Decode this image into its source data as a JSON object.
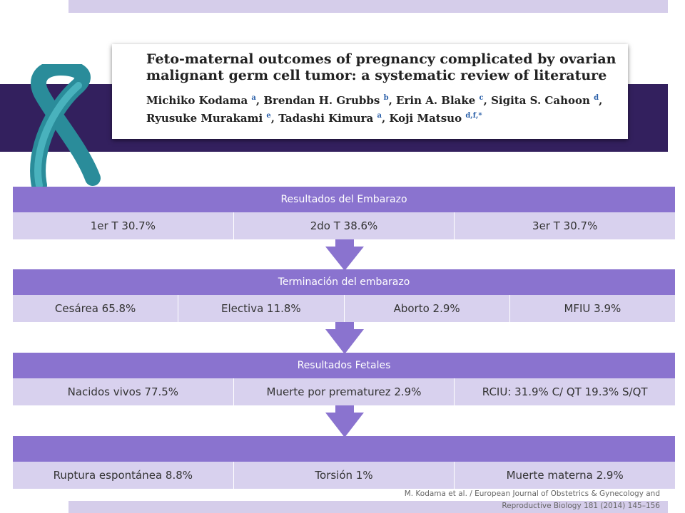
{
  "paper": {
    "title_lines": [
      "Feto-maternal outcomes of pregnancy complicated by ovarian",
      "malignant germ cell tumor: a systematic review of literature"
    ],
    "author_lines": [
      [
        {
          "t": "Michiko Kodama "
        },
        {
          "s": "a"
        },
        {
          "t": ", Brendan H. Grubbs "
        },
        {
          "s": "b"
        },
        {
          "t": ", Erin A. Blake "
        },
        {
          "s": "c"
        },
        {
          "t": ", Sigita S. Cahoon "
        },
        {
          "s": "d"
        },
        {
          "t": ","
        }
      ],
      [
        {
          "t": "Ryusuke Murakami "
        },
        {
          "s": "e"
        },
        {
          "t": ", Tadashi Kimura "
        },
        {
          "s": "a"
        },
        {
          "t": ", Koji Matsuo "
        },
        {
          "s": "d,f,*"
        }
      ]
    ]
  },
  "blocks": [
    {
      "header": "Resultados del Embarazo",
      "cells": [
        "1er T 30.7%",
        "2do T 38.6%",
        "3er T 30.7%"
      ]
    },
    {
      "header": "Terminación del embarazo",
      "cells": [
        "Cesárea 65.8%",
        "Electiva 11.8%",
        "Aborto 2.9%",
        "MFIU 3.9%"
      ]
    },
    {
      "header": "Resultados Fetales",
      "cells": [
        "Nacidos vivos 77.5%",
        "Muerte por prematurez 2.9%",
        "RCIU:  31.9% C/ QT 19.3% S/QT"
      ]
    },
    {
      "cells": [
        "Ruptura espontánea 8.8%",
        "Torsión 1%",
        "Muerte materna 2.9%"
      ]
    }
  ],
  "citation": [
    "M. Kodama et al. / European Journal of Obstetrics & Gynecology and",
    "Reproductive Biology 181 (2014) 145–156"
  ]
}
